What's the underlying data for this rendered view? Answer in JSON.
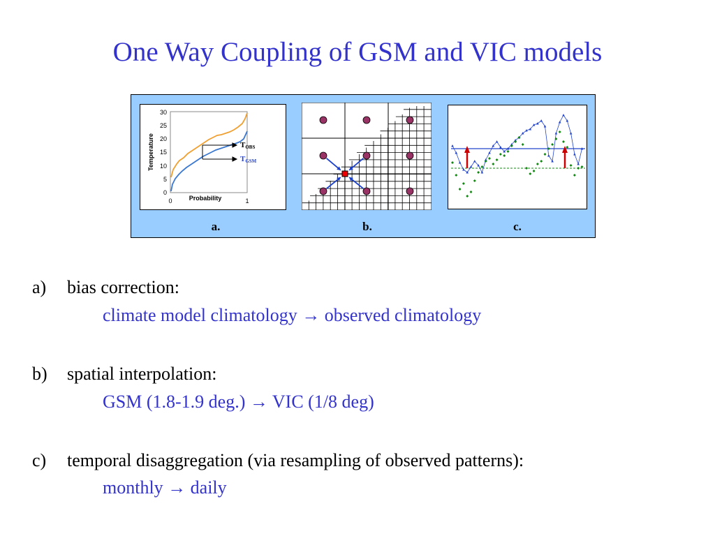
{
  "title": "One Way Coupling of GSM and VIC models",
  "figure": {
    "labels": [
      "a.",
      "b.",
      "c."
    ],
    "panel_a": {
      "ylabel": "Temperature",
      "xlabel": "Probability",
      "y_ticks": [
        "0",
        "5",
        "10",
        "15",
        "20",
        "25",
        "30"
      ],
      "x_ticks": [
        "0",
        "1"
      ],
      "t_obs": "T",
      "t_obs_sub": "OBS",
      "t_gsm": "T",
      "t_gsm_sub": "GSM",
      "colors": {
        "obs": "#f0a030",
        "gsm": "#3a78d0",
        "marker": "#000000"
      }
    },
    "panel_b": {
      "colors": {
        "gsm_node": "#993366",
        "vic_target": "#ee0000",
        "arrow": "#1a3fcc"
      }
    },
    "panel_c": {
      "colors": {
        "daily": "#2244cc",
        "points": "#118811",
        "arrow": "#cc0000"
      }
    }
  },
  "items": [
    {
      "letter": "a)",
      "label": "bias correction:",
      "detail": "climate model climatology → observed climatology"
    },
    {
      "letter": "b)",
      "label": "spatial interpolation:",
      "detail": "GSM (1.8-1.9 deg.) → VIC (1/8 deg)"
    },
    {
      "letter": "c)",
      "label": "temporal disaggregation (via resampling of observed patterns):",
      "detail": "monthly → daily"
    }
  ]
}
